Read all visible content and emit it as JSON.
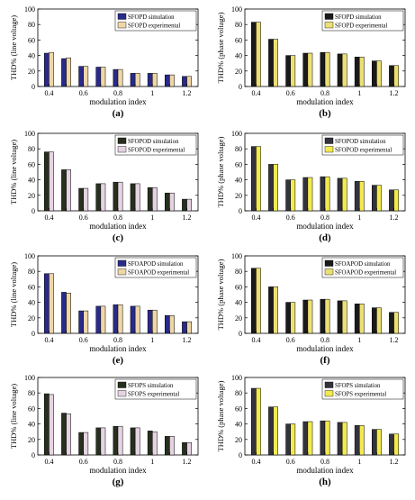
{
  "figure": {
    "colors": {
      "simulation": [
        "#2a2a8a",
        "#1a1a1a",
        "#27301e",
        "#33333d"
      ],
      "experimental": [
        "#eed6a6",
        "#ecdf73",
        "#e6d3e2",
        "#f2ea4e"
      ]
    },
    "icons": [
      "legend-swatch-simulation",
      "legend-swatch-experimental"
    ]
  },
  "chart_data": [
    {
      "type": "bar",
      "panel_label": "(a)",
      "xlabel": "modulation index",
      "ylabel": "THD% (line voltage)",
      "ylim": [
        0,
        100
      ],
      "yticks": [
        0,
        20,
        40,
        60,
        80,
        100
      ],
      "categories": [
        "0.4",
        "0.5",
        "0.6",
        "0.7",
        "0.8",
        "0.9",
        "1",
        "1.1",
        "1.2"
      ],
      "xtick_labels": [
        "0.4",
        "",
        "0.6",
        "",
        "0.8",
        "",
        "1",
        "",
        "1.2"
      ],
      "legend_position": "top-right",
      "series": [
        {
          "name": "SFOPD simulation",
          "values": [
            43,
            36,
            26,
            25,
            22,
            17,
            17,
            15,
            13
          ]
        },
        {
          "name": "SFOPD experimental",
          "values": [
            44,
            37,
            26,
            25,
            22,
            17,
            17,
            15,
            13
          ]
        }
      ]
    },
    {
      "type": "bar",
      "panel_label": "(b)",
      "xlabel": "modulation index",
      "ylabel": "THD% (phase voltage)",
      "ylim": [
        0,
        100
      ],
      "yticks": [
        0,
        20,
        40,
        60,
        80,
        100
      ],
      "categories": [
        "0.4",
        "0.5",
        "0.6",
        "0.7",
        "0.8",
        "0.9",
        "1",
        "1.1",
        "1.2"
      ],
      "xtick_labels": [
        "0.4",
        "",
        "0.6",
        "",
        "0.8",
        "",
        "1",
        "",
        "1.2"
      ],
      "legend_position": "top-right",
      "series": [
        {
          "name": "SFOPD simulation",
          "values": [
            83,
            61,
            40,
            43,
            44,
            42,
            38,
            33,
            27
          ]
        },
        {
          "name": "SFOPD experimental",
          "values": [
            83,
            61,
            40,
            43,
            44,
            42,
            38,
            33,
            27
          ]
        }
      ]
    },
    {
      "type": "bar",
      "panel_label": "(c)",
      "xlabel": "modulation index",
      "ylabel": "THD% (line voltage)",
      "ylim": [
        0,
        100
      ],
      "yticks": [
        0,
        20,
        40,
        60,
        80,
        100
      ],
      "categories": [
        "0.4",
        "0.5",
        "0.6",
        "0.7",
        "0.8",
        "0.9",
        "1",
        "1.1",
        "1.2"
      ],
      "xtick_labels": [
        "0.4",
        "",
        "0.6",
        "",
        "0.8",
        "",
        "1",
        "",
        "1.2"
      ],
      "legend_position": "top-right",
      "series": [
        {
          "name": "SFOPOD simulation",
          "values": [
            76,
            53,
            29,
            35,
            37,
            35,
            30,
            23,
            15
          ]
        },
        {
          "name": "SFOPOD experimental",
          "values": [
            76,
            53,
            29,
            35,
            37,
            35,
            30,
            23,
            15
          ]
        }
      ]
    },
    {
      "type": "bar",
      "panel_label": "(d)",
      "xlabel": "modulation index",
      "ylabel": "THD% (phase voltage)",
      "ylim": [
        0,
        100
      ],
      "yticks": [
        0,
        20,
        40,
        60,
        80,
        100
      ],
      "categories": [
        "0.4",
        "0.5",
        "0.6",
        "0.7",
        "0.8",
        "0.9",
        "1",
        "1.1",
        "1.2"
      ],
      "xtick_labels": [
        "0.4",
        "",
        "0.6",
        "",
        "0.8",
        "",
        "1",
        "",
        "1.2"
      ],
      "legend_position": "top-right",
      "series": [
        {
          "name": "SFOPOD simulation",
          "values": [
            83,
            60,
            40,
            43,
            44,
            42,
            38,
            33,
            27
          ]
        },
        {
          "name": "SFOPOD experimental",
          "values": [
            83,
            60,
            40,
            43,
            44,
            42,
            38,
            33,
            27
          ]
        }
      ]
    },
    {
      "type": "bar",
      "panel_label": "(e)",
      "xlabel": "modulation index",
      "ylabel": "THD% (line voltage)",
      "ylim": [
        0,
        100
      ],
      "yticks": [
        0,
        20,
        40,
        60,
        80,
        100
      ],
      "categories": [
        "0.4",
        "0.5",
        "0.6",
        "0.7",
        "0.8",
        "0.9",
        "1",
        "1.1",
        "1.2"
      ],
      "xtick_labels": [
        "0.4",
        "",
        "0.6",
        "",
        "0.8",
        "",
        "1",
        "",
        "1.2"
      ],
      "legend_position": "top-right",
      "series": [
        {
          "name": "SFOAPOD simulation",
          "values": [
            77,
            53,
            29,
            35,
            37,
            35,
            30,
            23,
            15
          ]
        },
        {
          "name": "SFOAPOD experimental",
          "values": [
            77,
            52,
            29,
            35,
            37,
            35,
            30,
            23,
            15
          ]
        }
      ]
    },
    {
      "type": "bar",
      "panel_label": "(f)",
      "xlabel": "modulation index",
      "ylabel": "THD% (phase voltage)",
      "ylim": [
        0,
        100
      ],
      "yticks": [
        0,
        20,
        40,
        60,
        80,
        100
      ],
      "categories": [
        "0.4",
        "0.5",
        "0.6",
        "0.7",
        "0.8",
        "0.9",
        "1",
        "1.1",
        "1.2"
      ],
      "xtick_labels": [
        "0.4",
        "",
        "0.6",
        "",
        "0.8",
        "",
        "1",
        "",
        "1.2"
      ],
      "legend_position": "top-right",
      "series": [
        {
          "name": "SFOAPOD simulation",
          "values": [
            84,
            60,
            40,
            43,
            44,
            42,
            38,
            33,
            27
          ]
        },
        {
          "name": "SFOAPOD experimental",
          "values": [
            84,
            60,
            40,
            43,
            44,
            42,
            38,
            33,
            27
          ]
        }
      ]
    },
    {
      "type": "bar",
      "panel_label": "(g)",
      "xlabel": "modulation index",
      "ylabel": "THD% (line voltage)",
      "ylim": [
        0,
        100
      ],
      "yticks": [
        0,
        20,
        40,
        60,
        80,
        100
      ],
      "categories": [
        "0.4",
        "0.5",
        "0.6",
        "0.7",
        "0.8",
        "0.9",
        "1",
        "1.1",
        "1.2"
      ],
      "xtick_labels": [
        "0.4",
        "",
        "0.6",
        "",
        "0.8",
        "",
        "1",
        "",
        "1.2"
      ],
      "legend_position": "top-right",
      "series": [
        {
          "name": "SFOPS simulation",
          "values": [
            79,
            54,
            29,
            35,
            37,
            35,
            31,
            24,
            16
          ]
        },
        {
          "name": "SFOPS experimental",
          "values": [
            78,
            53,
            29,
            35,
            37,
            35,
            30,
            24,
            16
          ]
        }
      ]
    },
    {
      "type": "bar",
      "panel_label": "(h)",
      "xlabel": "modulation index",
      "ylabel": "THD% (phase voltage)",
      "ylim": [
        0,
        100
      ],
      "yticks": [
        0,
        20,
        40,
        60,
        80,
        100
      ],
      "categories": [
        "0.4",
        "0.5",
        "0.6",
        "0.7",
        "0.8",
        "0.9",
        "1",
        "1.1",
        "1.2"
      ],
      "xtick_labels": [
        "0.4",
        "",
        "0.6",
        "",
        "0.8",
        "",
        "1",
        "",
        "1.2"
      ],
      "legend_position": "top-right",
      "series": [
        {
          "name": "SFOPS simulation",
          "values": [
            86,
            62,
            40,
            43,
            44,
            42,
            38,
            33,
            27
          ]
        },
        {
          "name": "SFOPS experimental",
          "values": [
            86,
            62,
            40,
            43,
            44,
            42,
            38,
            33,
            27
          ]
        }
      ]
    }
  ]
}
